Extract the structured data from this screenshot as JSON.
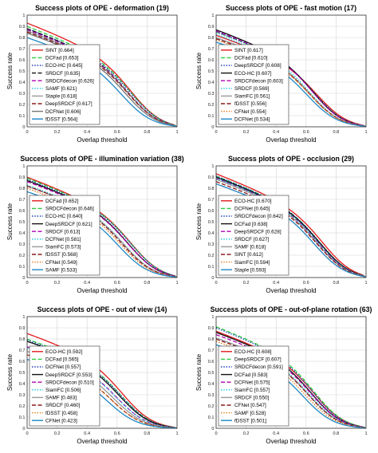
{
  "chart_data": [
    {
      "type": "line",
      "title": "Success plots of OPE - deformation (19)",
      "xlabel": "Overlap threshold",
      "ylabel": "Success rate",
      "xlim": [
        0,
        1
      ],
      "ylim": [
        0,
        1
      ],
      "xticks": [
        "0",
        "0.2",
        "0.4",
        "0.6",
        "0.8",
        "1"
      ],
      "yticks": [
        "0",
        "0.1",
        "0.2",
        "0.3",
        "0.4",
        "0.5",
        "0.6",
        "0.7",
        "0.8",
        "0.9",
        "1"
      ],
      "grid": true,
      "legend": "bottom-left",
      "series": [
        {
          "name": "SINT [0.664]",
          "color": "#e41a1c",
          "dash": "solid",
          "y0": 0.93,
          "shoulder": 0.62
        },
        {
          "name": "DCFad [0.653]",
          "color": "#2ecc40",
          "dash": "dashed",
          "y0": 0.9,
          "shoulder": 0.62
        },
        {
          "name": "ECO-HC [0.645]",
          "color": "#1f3fbf",
          "dash": "dotted",
          "y0": 0.88,
          "shoulder": 0.62
        },
        {
          "name": "SRDCF [0.635]",
          "color": "#111111",
          "dash": "dashed",
          "y0": 0.88,
          "shoulder": 0.6
        },
        {
          "name": "SRDCFdecon [0.626]",
          "color": "#b000b0",
          "dash": "dashed",
          "y0": 0.87,
          "shoulder": 0.6
        },
        {
          "name": "SAMF [0.621]",
          "color": "#19c6e0",
          "dash": "dotted",
          "y0": 0.86,
          "shoulder": 0.6
        },
        {
          "name": "Staple [0.618]",
          "color": "#999999",
          "dash": "solid",
          "y0": 0.86,
          "shoulder": 0.6
        },
        {
          "name": "DeepSRDCF [0.617]",
          "color": "#8b1a1a",
          "dash": "dashed",
          "y0": 0.85,
          "shoulder": 0.6
        },
        {
          "name": "DCFNet [0.606]",
          "color": "#777777",
          "dash": "solid",
          "y0": 0.84,
          "shoulder": 0.58
        },
        {
          "name": "fDSST [0.564]",
          "color": "#1e88c8",
          "dash": "solid",
          "y0": 0.8,
          "shoulder": 0.55
        }
      ]
    },
    {
      "type": "line",
      "title": "Success plots of OPE - fast motion (17)",
      "xlabel": "Overlap threshold",
      "ylabel": "Success rate",
      "xlim": [
        0,
        1
      ],
      "ylim": [
        0,
        1
      ],
      "xticks": [
        "0",
        "0.2",
        "0.4",
        "0.6",
        "0.8",
        "1"
      ],
      "yticks": [
        "0",
        "0.1",
        "0.2",
        "0.3",
        "0.4",
        "0.5",
        "0.6",
        "0.7",
        "0.8",
        "0.9",
        "1"
      ],
      "grid": true,
      "legend": "bottom-left",
      "series": [
        {
          "name": "SINT [0.617]",
          "color": "#e41a1c",
          "dash": "solid",
          "y0": 0.82,
          "shoulder": 0.6
        },
        {
          "name": "DCFad [0.610]",
          "color": "#2ecc40",
          "dash": "dashed",
          "y0": 0.85,
          "shoulder": 0.58
        },
        {
          "name": "DeepSRDCF [0.608]",
          "color": "#1f3fbf",
          "dash": "dotted",
          "y0": 0.85,
          "shoulder": 0.58
        },
        {
          "name": "ECO-HC [0.607]",
          "color": "#111111",
          "dash": "solid",
          "y0": 0.87,
          "shoulder": 0.57
        },
        {
          "name": "SRDCFdecon [0.603]",
          "color": "#b000b0",
          "dash": "dashed",
          "y0": 0.86,
          "shoulder": 0.57
        },
        {
          "name": "SRDCF [0.569]",
          "color": "#19c6e0",
          "dash": "dotted",
          "y0": 0.83,
          "shoulder": 0.55
        },
        {
          "name": "SiamFC [0.561]",
          "color": "#999999",
          "dash": "solid",
          "y0": 0.8,
          "shoulder": 0.55
        },
        {
          "name": "fDSST [0.556]",
          "color": "#8b1a1a",
          "dash": "dashed",
          "y0": 0.79,
          "shoulder": 0.55
        },
        {
          "name": "CFNet [0.554]",
          "color": "#e07b1a",
          "dash": "dotted",
          "y0": 0.78,
          "shoulder": 0.55
        },
        {
          "name": "DCFNet [0.534]",
          "color": "#1e88c8",
          "dash": "solid",
          "y0": 0.76,
          "shoulder": 0.53
        }
      ]
    },
    {
      "type": "line",
      "title": "Success plots of OPE - illumination variation (38)",
      "xlabel": "Overlap threshold",
      "ylabel": "Success rate",
      "xlim": [
        0,
        1
      ],
      "ylim": [
        0,
        1
      ],
      "xticks": [
        "0",
        "0.2",
        "0.4",
        "0.6",
        "0.8",
        "1"
      ],
      "yticks": [
        "0",
        "0.1",
        "0.2",
        "0.3",
        "0.4",
        "0.5",
        "0.6",
        "0.7",
        "0.8",
        "0.9",
        "1"
      ],
      "grid": true,
      "legend": "bottom-left",
      "series": [
        {
          "name": "DCFad [0.652]",
          "color": "#e41a1c",
          "dash": "solid",
          "y0": 0.9,
          "shoulder": 0.62
        },
        {
          "name": "SRDCFdecon [0.646]",
          "color": "#2ecc40",
          "dash": "dashed",
          "y0": 0.89,
          "shoulder": 0.62
        },
        {
          "name": "ECO-HC [0.640]",
          "color": "#1f3fbf",
          "dash": "dotted",
          "y0": 0.88,
          "shoulder": 0.62
        },
        {
          "name": "DeepSRDCF [0.621]",
          "color": "#111111",
          "dash": "solid",
          "y0": 0.87,
          "shoulder": 0.6
        },
        {
          "name": "SRDCF [0.613]",
          "color": "#b000b0",
          "dash": "dashed",
          "y0": 0.86,
          "shoulder": 0.6
        },
        {
          "name": "DCFNet [0.581]",
          "color": "#19c6e0",
          "dash": "dotted",
          "y0": 0.83,
          "shoulder": 0.57
        },
        {
          "name": "SiamFC [0.573]",
          "color": "#999999",
          "dash": "solid",
          "y0": 0.82,
          "shoulder": 0.57
        },
        {
          "name": "fDSST [0.568]",
          "color": "#8b1a1a",
          "dash": "dashed",
          "y0": 0.82,
          "shoulder": 0.56
        },
        {
          "name": "CFNet [0.549]",
          "color": "#e07b1a",
          "dash": "dotted",
          "y0": 0.8,
          "shoulder": 0.55
        },
        {
          "name": "SAMF [0.533]",
          "color": "#1e88c8",
          "dash": "solid",
          "y0": 0.77,
          "shoulder": 0.53
        }
      ]
    },
    {
      "type": "line",
      "title": "Success plots of OPE - occlusion (29)",
      "xlabel": "Overlap threshold",
      "ylabel": "Success rate",
      "xlim": [
        0,
        1
      ],
      "ylim": [
        0,
        1
      ],
      "xticks": [
        "0",
        "0.2",
        "0.4",
        "0.6",
        "0.8",
        "1"
      ],
      "yticks": [
        "0",
        "0.1",
        "0.2",
        "0.3",
        "0.4",
        "0.5",
        "0.6",
        "0.7",
        "0.8",
        "0.9",
        "1"
      ],
      "grid": true,
      "legend": "bottom-left",
      "series": [
        {
          "name": "ECO-HC [0.670]",
          "color": "#e41a1c",
          "dash": "solid",
          "y0": 0.93,
          "shoulder": 0.64
        },
        {
          "name": "DCFNet [0.645]",
          "color": "#2ecc40",
          "dash": "dashed",
          "y0": 0.91,
          "shoulder": 0.62
        },
        {
          "name": "SRDCFdecon [0.642]",
          "color": "#1f3fbf",
          "dash": "dotted",
          "y0": 0.91,
          "shoulder": 0.62
        },
        {
          "name": "DCFad [0.638]",
          "color": "#111111",
          "dash": "solid",
          "y0": 0.9,
          "shoulder": 0.62
        },
        {
          "name": "DeepSRDCF [0.628]",
          "color": "#b000b0",
          "dash": "dashed",
          "y0": 0.89,
          "shoulder": 0.61
        },
        {
          "name": "SRDCF [0.627]",
          "color": "#19c6e0",
          "dash": "dotted",
          "y0": 0.89,
          "shoulder": 0.61
        },
        {
          "name": "SAMF [0.618]",
          "color": "#999999",
          "dash": "solid",
          "y0": 0.88,
          "shoulder": 0.6
        },
        {
          "name": "SINT [0.612]",
          "color": "#8b1a1a",
          "dash": "dashed",
          "y0": 0.86,
          "shoulder": 0.6
        },
        {
          "name": "SiamFC [0.594]",
          "color": "#e07b1a",
          "dash": "dotted",
          "y0": 0.84,
          "shoulder": 0.58
        },
        {
          "name": "Staple [0.593]",
          "color": "#1e88c8",
          "dash": "solid",
          "y0": 0.84,
          "shoulder": 0.58
        }
      ]
    },
    {
      "type": "line",
      "title": "Success plots of OPE - out of view (14)",
      "xlabel": "Overlap threshold",
      "ylabel": "Success rate",
      "xlim": [
        0,
        1
      ],
      "ylim": [
        0,
        1
      ],
      "xticks": [
        "0",
        "0.2",
        "0.4",
        "0.6",
        "0.8",
        "1"
      ],
      "yticks": [
        "0",
        "0.1",
        "0.2",
        "0.3",
        "0.4",
        "0.5",
        "0.6",
        "0.7",
        "0.8",
        "0.9",
        "1"
      ],
      "grid": true,
      "legend": "bottom-left",
      "series": [
        {
          "name": "ECO-HC [0.592]",
          "color": "#e41a1c",
          "dash": "solid",
          "y0": 0.85,
          "shoulder": 0.56
        },
        {
          "name": "DCFad [0.565]",
          "color": "#2ecc40",
          "dash": "dashed",
          "y0": 0.8,
          "shoulder": 0.55
        },
        {
          "name": "DCFNet [0.557]",
          "color": "#1f3fbf",
          "dash": "dotted",
          "y0": 0.79,
          "shoulder": 0.55
        },
        {
          "name": "DeepSRDCF [0.553]",
          "color": "#111111",
          "dash": "solid",
          "y0": 0.78,
          "shoulder": 0.54
        },
        {
          "name": "SRDCFdecon [0.510]",
          "color": "#b000b0",
          "dash": "dashed",
          "y0": 0.73,
          "shoulder": 0.52
        },
        {
          "name": "SiamFC [0.506]",
          "color": "#19c6e0",
          "dash": "dotted",
          "y0": 0.72,
          "shoulder": 0.52
        },
        {
          "name": "SAMF [0.483]",
          "color": "#999999",
          "dash": "solid",
          "y0": 0.69,
          "shoulder": 0.5
        },
        {
          "name": "SRDCF [0.460]",
          "color": "#8b1a1a",
          "dash": "dashed",
          "y0": 0.66,
          "shoulder": 0.48
        },
        {
          "name": "fDSST [0.458]",
          "color": "#e07b1a",
          "dash": "dotted",
          "y0": 0.66,
          "shoulder": 0.48
        },
        {
          "name": "CFNet [0.423]",
          "color": "#1e88c8",
          "dash": "solid",
          "y0": 0.62,
          "shoulder": 0.45
        }
      ]
    },
    {
      "type": "line",
      "title": "Success plots of OPE - out-of-plane rotation (63)",
      "xlabel": "Overlap threshold",
      "ylabel": "Success rate",
      "xlim": [
        0,
        1
      ],
      "ylim": [
        0,
        1
      ],
      "xticks": [
        "0",
        "0.2",
        "0.4",
        "0.6",
        "0.8",
        "1"
      ],
      "yticks": [
        "0",
        "0.1",
        "0.2",
        "0.3",
        "0.4",
        "0.5",
        "0.6",
        "0.7",
        "0.8",
        "0.9",
        "1"
      ],
      "grid": true,
      "legend": "bottom-left",
      "series": [
        {
          "name": "ECO-HC [0.608]",
          "color": "#e41a1c",
          "dash": "solid",
          "y0": 0.87,
          "shoulder": 0.58
        },
        {
          "name": "DeepSRDCF [0.607]",
          "color": "#2ecc40",
          "dash": "dashed",
          "y0": 0.91,
          "shoulder": 0.58
        },
        {
          "name": "SRDCFdecon [0.591]",
          "color": "#1f3fbf",
          "dash": "dotted",
          "y0": 0.9,
          "shoulder": 0.57
        },
        {
          "name": "DCFad [0.583]",
          "color": "#111111",
          "dash": "solid",
          "y0": 0.86,
          "shoulder": 0.56
        },
        {
          "name": "DCFNet [0.575]",
          "color": "#b000b0",
          "dash": "dashed",
          "y0": 0.84,
          "shoulder": 0.56
        },
        {
          "name": "SiamFC [0.557]",
          "color": "#19c6e0",
          "dash": "dotted",
          "y0": 0.81,
          "shoulder": 0.55
        },
        {
          "name": "SRDCF [0.550]",
          "color": "#999999",
          "dash": "solid",
          "y0": 0.81,
          "shoulder": 0.54
        },
        {
          "name": "CFNet [0.547]",
          "color": "#8b1a1a",
          "dash": "dashed",
          "y0": 0.8,
          "shoulder": 0.54
        },
        {
          "name": "SAMF [0.528]",
          "color": "#e07b1a",
          "dash": "dotted",
          "y0": 0.78,
          "shoulder": 0.52
        },
        {
          "name": "fDSST [0.501]",
          "color": "#1e88c8",
          "dash": "solid",
          "y0": 0.75,
          "shoulder": 0.5
        }
      ]
    }
  ]
}
